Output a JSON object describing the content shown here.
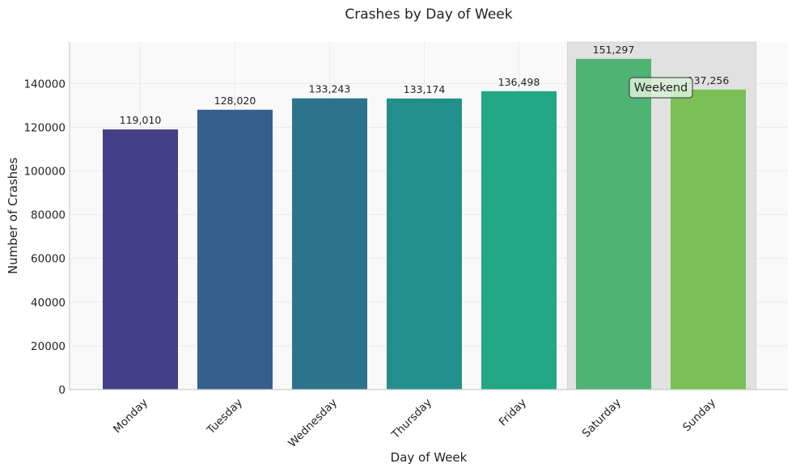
{
  "chart_data": {
    "type": "bar",
    "title": "Crashes by Day of Week",
    "xlabel": "Day of Week",
    "ylabel": "Number of Crashes",
    "categories": [
      "Monday",
      "Tuesday",
      "Wednesday",
      "Thursday",
      "Friday",
      "Saturday",
      "Sunday"
    ],
    "values": [
      119010,
      128020,
      133243,
      133174,
      136498,
      151297,
      137256
    ],
    "data_labels": [
      "119,010",
      "128,020",
      "133,243",
      "133,174",
      "136,498",
      "151,297",
      "137,256"
    ],
    "ylim": [
      0,
      159000
    ],
    "yticks": [
      0,
      20000,
      40000,
      60000,
      80000,
      100000,
      120000,
      140000
    ],
    "ytick_labels": [
      "0",
      "20000",
      "40000",
      "60000",
      "80000",
      "100000",
      "120000",
      "140000"
    ],
    "colors": [
      "#433e85",
      "#355f8d",
      "#2c738e",
      "#21908d",
      "#22a884",
      "#4fb373",
      "#7ac057"
    ],
    "grid": true,
    "annotations": [
      {
        "text": "Weekend",
        "highlight_categories": [
          "Saturday",
          "Sunday"
        ],
        "x": "Saturday/Sunday boundary",
        "y": 137000
      }
    ],
    "background_color": "#f9f9f9",
    "highlight_color": "#e1e1e1"
  }
}
